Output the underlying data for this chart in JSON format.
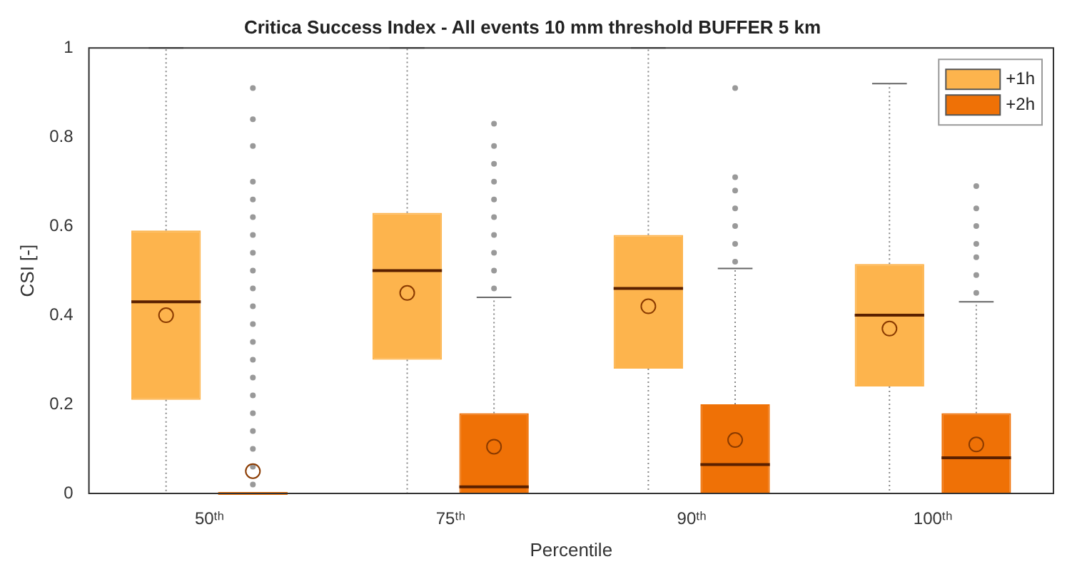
{
  "chart_data": {
    "type": "box",
    "title": "Critica Success Index - All events 10 mm threshold BUFFER 5 km",
    "xlabel": "Percentile",
    "ylabel": "CSI [-]",
    "categories": [
      "50ᵗʰ",
      "75ᵗʰ",
      "90ᵗʰ",
      "100ᵗʰ"
    ],
    "ylim": [
      0,
      1
    ],
    "yticks": [
      0,
      0.2,
      0.4,
      0.6,
      0.8,
      1
    ],
    "grid": false,
    "legend": "top right",
    "series": [
      {
        "name": "+1h",
        "color": "#fdb44d",
        "boxes": [
          {
            "low": 0,
            "q1": 0.21,
            "median": 0.43,
            "q3": 0.59,
            "high": 1,
            "mean": 0.4
          },
          {
            "low": 0,
            "q1": 0.3,
            "median": 0.5,
            "q3": 0.63,
            "high": 1,
            "mean": 0.45
          },
          {
            "low": 0,
            "q1": 0.28,
            "median": 0.46,
            "q3": 0.58,
            "high": 1,
            "mean": 0.42
          },
          {
            "low": 0,
            "q1": 0.24,
            "median": 0.4,
            "q3": 0.515,
            "high": 0.92,
            "mean": 0.37
          }
        ]
      },
      {
        "name": "+2h",
        "color": "#ef7106",
        "boxes": [
          {
            "low": 0,
            "q1": 0,
            "median": 0,
            "q3": 0,
            "high": 0,
            "mean": 0.05,
            "outliers": [
              0.02,
              0.06,
              0.1,
              0.14,
              0.18,
              0.22,
              0.26,
              0.3,
              0.34,
              0.38,
              0.42,
              0.46,
              0.5,
              0.54,
              0.58,
              0.62,
              0.66,
              0.7,
              0.78,
              0.84,
              0.91
            ]
          },
          {
            "low": 0,
            "q1": 0,
            "median": 0.015,
            "q3": 0.18,
            "high": 0.44,
            "mean": 0.105,
            "outliers": [
              0.46,
              0.5,
              0.54,
              0.58,
              0.62,
              0.66,
              0.7,
              0.74,
              0.78,
              0.83
            ]
          },
          {
            "low": 0,
            "q1": 0,
            "median": 0.065,
            "q3": 0.2,
            "high": 0.505,
            "mean": 0.12,
            "outliers": [
              0.52,
              0.56,
              0.6,
              0.64,
              0.68,
              0.71,
              0.91
            ]
          },
          {
            "low": 0,
            "q1": 0,
            "median": 0.08,
            "q3": 0.18,
            "high": 0.43,
            "mean": 0.11,
            "outliers": [
              0.45,
              0.49,
              0.53,
              0.56,
              0.6,
              0.64,
              0.69
            ]
          }
        ]
      }
    ]
  }
}
